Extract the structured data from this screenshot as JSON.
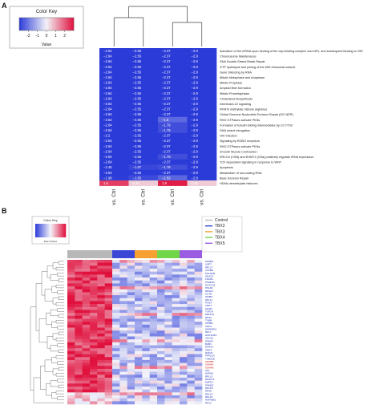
{
  "panels": {
    "a": "A",
    "b": "B"
  },
  "chart_data": [
    {
      "type": "heatmap",
      "panel": "A",
      "key": {
        "title": "Color Key",
        "xlabel": "Value",
        "ticks": [
          "-2",
          "-1",
          "0",
          "1",
          "2"
        ]
      },
      "columns": [
        "TBX2 vs. Ctrl",
        "TBX3 vs. Ctrl",
        "TBX4 vs. Ctrl",
        "TBX5 vs. Ctrl"
      ],
      "rows": [
        {
          "label": "Activation of the mRNA upon binding of the cap-binding complex and eIFs, and subsequent binding to 43S",
          "values": [
            -2.64,
            -2.55,
            -2.37,
            -2.9
          ]
        },
        {
          "label": "Chromosome Maintenance",
          "values": [
            -2.64,
            -2.55,
            -2.37,
            -2.9
          ]
        },
        {
          "label": "DNA Double-Strand Break Repair",
          "values": [
            -2.64,
            -2.55,
            -2.37,
            -2.9
          ]
        },
        {
          "label": "GTP hydrolysis and joining of the 60S ribosomal subunit",
          "values": [
            -2.64,
            -2.55,
            -2.37,
            -2.9
          ]
        },
        {
          "label": "Gene Silencing by RNA",
          "values": [
            -2.64,
            -2.55,
            -2.37,
            -2.9
          ]
        },
        {
          "label": "Mitotic Metaphase and Anaphase",
          "values": [
            -2.64,
            -2.55,
            -2.37,
            -2.9
          ]
        },
        {
          "label": "Mitotic Prophase",
          "values": [
            -2.64,
            -2.55,
            -2.37,
            -2.9
          ]
        },
        {
          "label": "Amyloid fiber formation",
          "values": [
            -2.64,
            -2.55,
            -2.37,
            -2.9
          ]
        },
        {
          "label": "Mitotic Prometaphase",
          "values": [
            -2.64,
            -2.55,
            -2.37,
            -2.9
          ]
        },
        {
          "label": "Cholesterol biosynthesis",
          "values": [
            -2.64,
            -2.55,
            -2.37,
            -2.9
          ]
        },
        {
          "label": "Interleukin-12 signaling",
          "values": [
            -2.64,
            -2.55,
            -2.37,
            -2.9
          ]
        },
        {
          "label": "PKMTs methylate histone arginines",
          "values": [
            -2.64,
            -2.55,
            -2.37,
            -2.9
          ]
        },
        {
          "label": "Global Genome Nucleotide Excision Repair (GG-NER)",
          "values": [
            -2.64,
            -2.55,
            -2.37,
            -2.9
          ]
        },
        {
          "label": "RHO GTPases activate PKNs",
          "values": [
            -2.64,
            -2.55,
            -1.5,
            -2.9
          ]
        },
        {
          "label": "Formation of tubulin folding intermediates by CCT/TriC",
          "values": [
            -2.64,
            -2.55,
            -1.79,
            -2.9
          ]
        },
        {
          "label": "DNA strand elongation",
          "values": [
            -2.64,
            -2.55,
            -1.79,
            -2.9
          ]
        },
        {
          "label": "HIV Infection",
          "values": [
            -2.2,
            -2.55,
            -2.37,
            -2.9
          ]
        },
        {
          "label": "Signaling by ROBO receptors",
          "values": [
            -2.64,
            -2.55,
            -2.37,
            -2.9
          ]
        },
        {
          "label": "RHO GTPases activate PKNs",
          "values": [
            -2.64,
            -2.55,
            -2.37,
            -2.9
          ]
        },
        {
          "label": "Smooth Muscle Contraction",
          "values": [
            -2.64,
            -2.55,
            -2.37,
            -2.9
          ]
        },
        {
          "label": "ERCC6 (CSB) and EHMT2 (G9a) positively regulate rRNA expression",
          "values": [
            -2.64,
            -2.55,
            -1.79,
            -2.9
          ]
        },
        {
          "label": "TCF dependent signaling in response to WNT",
          "values": [
            -2.64,
            -2.55,
            -2.37,
            -2.9
          ]
        },
        {
          "label": "Apoptosis",
          "values": [
            -2.45,
            -1.87,
            -1.78,
            -2.9
          ]
        },
        {
          "label": "Metabolism of non-coding RNA",
          "values": [
            -2.64,
            -2.55,
            -2.37,
            -2.9
          ]
        },
        {
          "label": "Base Excision Repair",
          "values": [
            -1.98,
            -1.83,
            -1.52,
            -2.9
          ]
        },
        {
          "label": "HDMs demethylate histones",
          "values": [
            1.6,
            0.35,
            1.9,
            0.35
          ]
        }
      ],
      "value_labels": [
        [
          "−2.64",
          "−2.55",
          "−2.37",
          "−2.9"
        ],
        [
          "−2.64",
          "−2.55",
          "−2.37",
          "−2.9"
        ],
        [
          "−2.64",
          "−2.55",
          "−2.37",
          "−2.9"
        ],
        [
          "−2.64",
          "−2.55",
          "−2.37",
          "−2.9"
        ],
        [
          "−2.64",
          "−2.55",
          "−2.37",
          "−2.9"
        ],
        [
          "−2.64",
          "−2.55",
          "−2.37",
          "−2.9"
        ],
        [
          "−2.64",
          "−2.55",
          "−2.37",
          "−2.9"
        ],
        [
          "−2.64",
          "−2.55",
          "−2.37",
          "−2.9"
        ],
        [
          "−2.64",
          "−2.55",
          "−2.37",
          "−2.9"
        ],
        [
          "−2.64",
          "−2.55",
          "−2.37",
          "−2.9"
        ],
        [
          "−2.64",
          "−2.55",
          "−2.37",
          "−2.9"
        ],
        [
          "−2.64",
          "−2.55",
          "−2.37",
          "−2.9"
        ],
        [
          "−2.64",
          "−2.55",
          "−2.37",
          "−2.9"
        ],
        [
          "−2.64",
          "−2.55",
          "−1.5",
          "−2.9"
        ],
        [
          "−2.64",
          "−2.55",
          "−1.79",
          "−2.9"
        ],
        [
          "−2.64",
          "−2.55",
          "−1.79",
          "−2.9"
        ],
        [
          "−2.2",
          "−2.55",
          "−2.37",
          "−2.9"
        ],
        [
          "−2.64",
          "−2.55",
          "−2.37",
          "−2.9"
        ],
        [
          "−2.64",
          "−2.55",
          "−2.37",
          "−2.9"
        ],
        [
          "−2.64",
          "−2.55",
          "−2.37",
          "−2.9"
        ],
        [
          "−2.64",
          "−2.55",
          "−1.79",
          "−2.9"
        ],
        [
          "−2.64",
          "−2.55",
          "−2.37",
          "−2.9"
        ],
        [
          "−2.45",
          "−1.87",
          "−1.78",
          "−2.9"
        ],
        [
          "−2.64",
          "−2.55",
          "−2.37",
          "−2.9"
        ],
        [
          "−1.98",
          "−1.83",
          "−1.52",
          "−2.9"
        ],
        [
          "1.6",
          "0.35",
          "1.9",
          "0.35"
        ]
      ],
      "colors": {
        "low": "#2b3bd8",
        "mid": "#f2f2f7",
        "high": "#e0113d"
      }
    },
    {
      "type": "heatmap",
      "panel": "B",
      "key": {
        "title": "Color Key",
        "xlabel": "Row Z-Score"
      },
      "legend": {
        "position": "top-right",
        "entries": [
          {
            "name": "Control",
            "color": "#b8b8b8"
          },
          {
            "name": "TBX2",
            "color": "#3c46d6"
          },
          {
            "name": "TBX3",
            "color": "#f5a030"
          },
          {
            "name": "TBX4",
            "color": "#72d64a"
          },
          {
            "name": "TBX5",
            "color": "#9a5ce0"
          }
        ]
      },
      "groups": [
        {
          "name": "Control",
          "columns": 6
        },
        {
          "name": "TBX2",
          "columns": 3
        },
        {
          "name": "TBX3",
          "columns": 3
        },
        {
          "name": "TBX4",
          "columns": 3
        },
        {
          "name": "TBX5",
          "columns": 3
        }
      ],
      "genes": [
        "PSMB1",
        "USP7",
        "RPL27",
        "CCNB2",
        "POLR2B",
        "HDAC2",
        "FGFR1",
        "PSMD11",
        "NOTCH2",
        "POLD1",
        "RPS20",
        "ACTB",
        "SF3B1",
        "RPL11",
        "PCNA",
        "CDK1",
        "MCM2",
        "TOP2A",
        "EEF1A1",
        "RPS3",
        "TUBB",
        "KPNB1",
        "ORC1",
        "HNRNPA1",
        "RPL7",
        "HIST1H4C",
        "CDC20",
        "PSMA7",
        "BUB1",
        "EIF4A1",
        "SMC3",
        "RAD21",
        "PPP2CA",
        "TUBA1B",
        "KDM5B",
        "KDM4A",
        "KDM4B",
        "NCL",
        "HSPA8",
        "RPL13",
        "RPS27A",
        "MAPK1",
        "PSMD2",
        "RPLP0",
        "RPS6",
        "RPL14",
        "RPL15",
        "HSP90B1",
        "RFC2"
      ],
      "red_genes": [
        "KDM5B",
        "KDM4A",
        "KDM4B"
      ]
    }
  ]
}
